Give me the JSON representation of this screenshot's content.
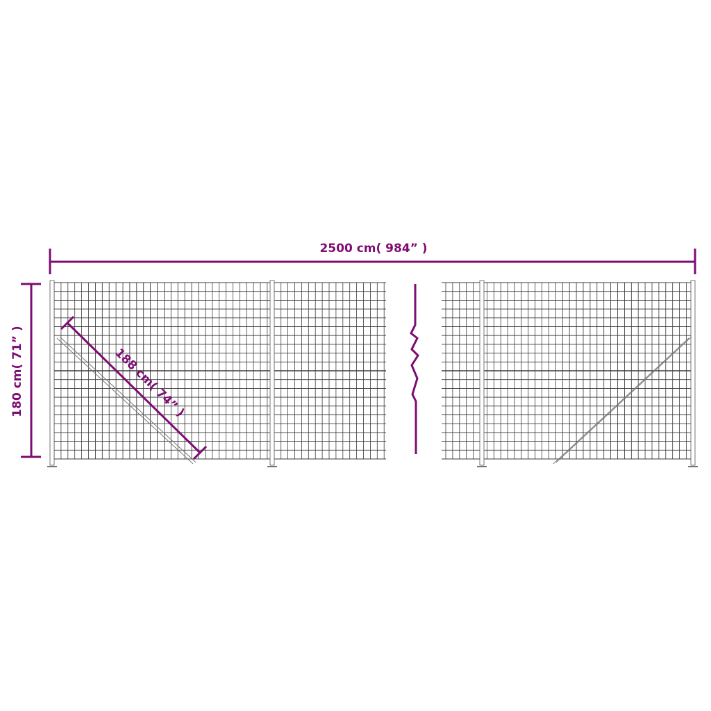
{
  "dimensions": {
    "length_label": "2500 cm( 984” )",
    "height_label": "180 cm( 71” )",
    "diagonal_label": "188 cm( 74” )"
  },
  "colors": {
    "dimension": "#7d0c73",
    "mesh": "#3a3a3a",
    "background": "#ffffff"
  }
}
